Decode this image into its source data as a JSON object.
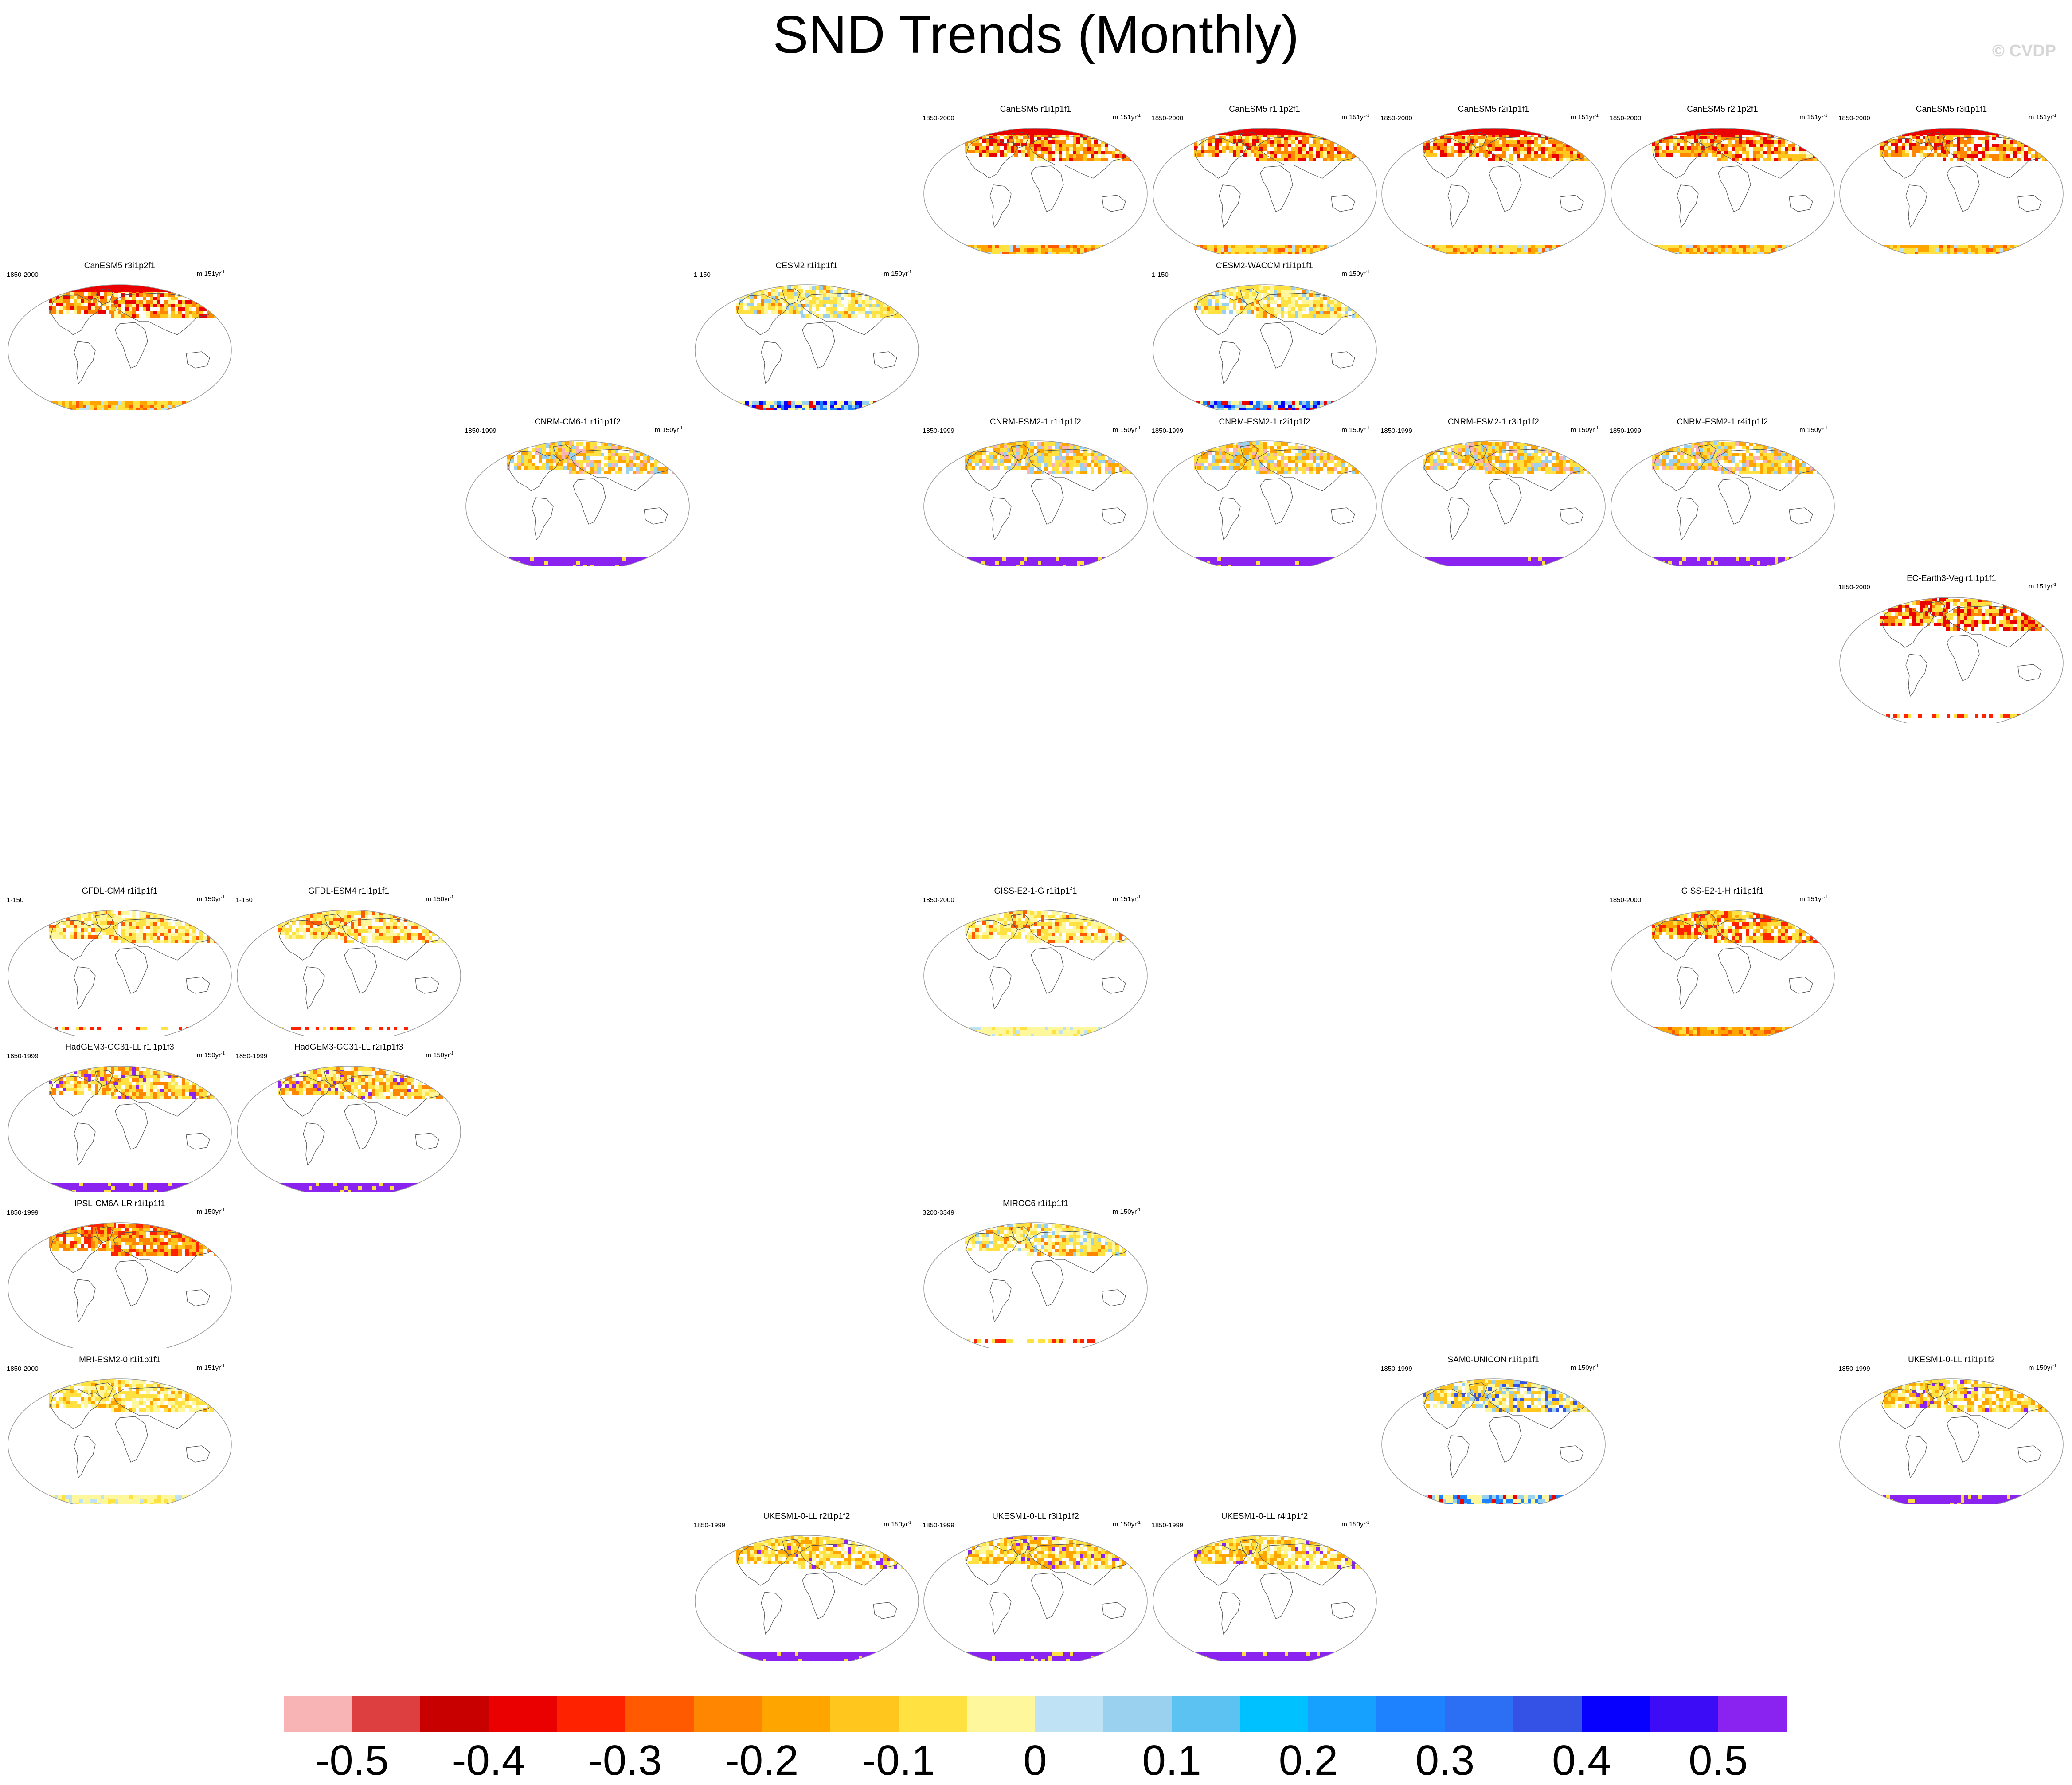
{
  "title": "SND Trends (Monthly)",
  "watermark": "© CVDP",
  "chart_data": {
    "type": "map-panels",
    "title": "SND Trends (Monthly)",
    "variable": "SND",
    "colorbar": {
      "ticks": [
        "-0.5",
        "-0.4",
        "-0.3",
        "-0.2",
        "-0.1",
        "0",
        "0.1",
        "0.2",
        "0.3",
        "0.4",
        "0.5"
      ],
      "range": [
        -0.55,
        0.55
      ],
      "colors": [
        "#f8b3b5",
        "#dd3f40",
        "#c80000",
        "#ea0000",
        "#ff2200",
        "#ff5a00",
        "#ff8600",
        "#ffa500",
        "#ffc61e",
        "#ffe241",
        "#fff79b",
        "#bfe3f4",
        "#99d1ee",
        "#5bc2f2",
        "#00c1ff",
        "#16a1ff",
        "#1e82ff",
        "#2c6ef4",
        "#3552e6",
        "#0700ff",
        "#3b0cf5",
        "#8a22f0"
      ]
    },
    "panels": [
      {
        "id": "canesm5-r1i1p1f1",
        "title": "CanESM5 r1i1p1f1",
        "period": "1850-2000",
        "units": "m 151yr",
        "row": 0,
        "col": 4,
        "style": "canesm",
        "antarctic": "yellow"
      },
      {
        "id": "canesm5-r1i1p2f1",
        "title": "CanESM5 r1i1p2f1",
        "period": "1850-2000",
        "units": "m 151yr",
        "row": 0,
        "col": 5,
        "style": "canesm",
        "antarctic": "yellow"
      },
      {
        "id": "canesm5-r2i1p1f1",
        "title": "CanESM5 r2i1p1f1",
        "period": "1850-2000",
        "units": "m 151yr",
        "row": 0,
        "col": 6,
        "style": "canesm",
        "antarctic": "yellow"
      },
      {
        "id": "canesm5-r2i1p2f1",
        "title": "CanESM5 r2i1p2f1",
        "period": "1850-2000",
        "units": "m 151yr",
        "row": 0,
        "col": 7,
        "style": "canesm",
        "antarctic": "yellow"
      },
      {
        "id": "canesm5-r3i1p1f1",
        "title": "CanESM5 r3i1p1f1",
        "period": "1850-2000",
        "units": "m 151yr",
        "row": 0,
        "col": 8,
        "style": "canesm",
        "antarctic": "yellow"
      },
      {
        "id": "canesm5-r3i1p2f1",
        "title": "CanESM5 r3i1p2f1",
        "period": "1850-2000",
        "units": "m 151yr",
        "row": 1,
        "col": 0,
        "style": "canesm",
        "antarctic": "yellow"
      },
      {
        "id": "cesm2-r1i1p1f1",
        "title": "CESM2 r1i1p1f1",
        "period": "1-150",
        "units": "m 150yr",
        "row": 1,
        "col": 3,
        "style": "cesm",
        "antarctic": "mixed"
      },
      {
        "id": "cesm2-waccm-r1i1p1f1",
        "title": "CESM2-WACCM r1i1p1f1",
        "period": "1-150",
        "units": "m 150yr",
        "row": 1,
        "col": 5,
        "style": "cesm",
        "antarctic": "mixed"
      },
      {
        "id": "cnrm-cm6-1-r1i1p1f2",
        "title": "CNRM-CM6-1 r1i1p1f2",
        "period": "1850-1999",
        "units": "m 150yr",
        "row": 2,
        "col": 2,
        "style": "cnrm",
        "antarctic": "purple"
      },
      {
        "id": "cnrm-esm2-1-r1i1p1f2",
        "title": "CNRM-ESM2-1 r1i1p1f2",
        "period": "1850-1999",
        "units": "m 150yr",
        "row": 2,
        "col": 4,
        "style": "cnrm",
        "antarctic": "purple"
      },
      {
        "id": "cnrm-esm2-1-r2i1p1f2",
        "title": "CNRM-ESM2-1 r2i1p1f2",
        "period": "1850-1999",
        "units": "m 150yr",
        "row": 2,
        "col": 5,
        "style": "cnrm",
        "antarctic": "purple"
      },
      {
        "id": "cnrm-esm2-1-r3i1p1f2",
        "title": "CNRM-ESM2-1 r3i1p1f2",
        "period": "1850-1999",
        "units": "m 150yr",
        "row": 2,
        "col": 6,
        "style": "cnrm",
        "antarctic": "purple"
      },
      {
        "id": "cnrm-esm2-1-r4i1p1f2",
        "title": "CNRM-ESM2-1 r4i1p1f2",
        "period": "1850-1999",
        "units": "m 150yr",
        "row": 2,
        "col": 7,
        "style": "cnrm",
        "antarctic": "purple"
      },
      {
        "id": "ec-earth3-veg-r1i1p1f1",
        "title": "EC-Earth3-Veg r1i1p1f1",
        "period": "1850-2000",
        "units": "m 151yr",
        "row": 3,
        "col": 8,
        "style": "ecearth",
        "antarctic": "edge"
      },
      {
        "id": "gfdl-cm4-r1i1p1f1",
        "title": "GFDL-CM4 r1i1p1f1",
        "period": "1-150",
        "units": "m 150yr",
        "row": 5,
        "col": 0,
        "style": "gfdl",
        "antarctic": "edge"
      },
      {
        "id": "gfdl-esm4-r1i1p1f1",
        "title": "GFDL-ESM4 r1i1p1f1",
        "period": "1-150",
        "units": "m 150yr",
        "row": 5,
        "col": 1,
        "style": "gfdl",
        "antarctic": "edge"
      },
      {
        "id": "giss-e2-1-g-r1i1p1f1",
        "title": "GISS-E2-1-G r1i1p1f1",
        "period": "1850-2000",
        "units": "m 151yr",
        "row": 5,
        "col": 4,
        "style": "giss",
        "antarctic": "paleyellow"
      },
      {
        "id": "giss-e2-1-h-r1i1p1f1",
        "title": "GISS-E2-1-H r1i1p1f1",
        "period": "1850-2000",
        "units": "m 151yr",
        "row": 5,
        "col": 7,
        "style": "gissh",
        "antarctic": "orange"
      },
      {
        "id": "hadgem3-gc31-ll-r1i1p1f3",
        "title": "HadGEM3-GC31-LL r1i1p1f3",
        "period": "1850-1999",
        "units": "m 150yr",
        "row": 6,
        "col": 0,
        "style": "hadgem",
        "antarctic": "purple"
      },
      {
        "id": "hadgem3-gc31-ll-r2i1p1f3",
        "title": "HadGEM3-GC31-LL r2i1p1f3",
        "period": "1850-1999",
        "units": "m 150yr",
        "row": 6,
        "col": 1,
        "style": "hadgem",
        "antarctic": "purple"
      },
      {
        "id": "ipsl-cm6a-lr-r1i1p1f1",
        "title": "IPSL-CM6A-LR r1i1p1f1",
        "period": "1850-1999",
        "units": "m 150yr",
        "row": 7,
        "col": 0,
        "style": "ipsl",
        "antarctic": "none"
      },
      {
        "id": "miroc6-r1i1p1f1",
        "title": "MIROC6 r1i1p1f1",
        "period": "3200-3349",
        "units": "m 150yr",
        "row": 7,
        "col": 4,
        "style": "miroc",
        "antarctic": "edge"
      },
      {
        "id": "mri-esm2-0-r1i1p1f1",
        "title": "MRI-ESM2-0 r1i1p1f1",
        "period": "1850-2000",
        "units": "m 151yr",
        "row": 8,
        "col": 0,
        "style": "mri",
        "antarctic": "paleyellow"
      },
      {
        "id": "sam0-unicon-r1i1p1f1",
        "title": "SAM0-UNICON r1i1p1f1",
        "period": "1850-1999",
        "units": "m 150yr",
        "row": 8,
        "col": 6,
        "style": "sam",
        "antarctic": "mixed2"
      },
      {
        "id": "ukesm1-0-ll-r1i1p1f2",
        "title": "UKESM1-0-LL r1i1p1f2",
        "period": "1850-1999",
        "units": "m 150yr",
        "row": 8,
        "col": 8,
        "style": "ukesm",
        "antarctic": "purple"
      },
      {
        "id": "ukesm1-0-ll-r2i1p1f2",
        "title": "UKESM1-0-LL r2i1p1f2",
        "period": "1850-1999",
        "units": "m 150yr",
        "row": 9,
        "col": 3,
        "style": "ukesm",
        "antarctic": "purple"
      },
      {
        "id": "ukesm1-0-ll-r3i1p1f2",
        "title": "UKESM1-0-LL r3i1p1f2",
        "period": "1850-1999",
        "units": "m 150yr",
        "row": 9,
        "col": 4,
        "style": "ukesm",
        "antarctic": "purple"
      },
      {
        "id": "ukesm1-0-ll-r4i1p1f2",
        "title": "UKESM1-0-LL r4i1p1f2",
        "period": "1850-1999",
        "units": "m 150yr",
        "row": 9,
        "col": 5,
        "style": "ukesm",
        "antarctic": "purple"
      }
    ]
  }
}
